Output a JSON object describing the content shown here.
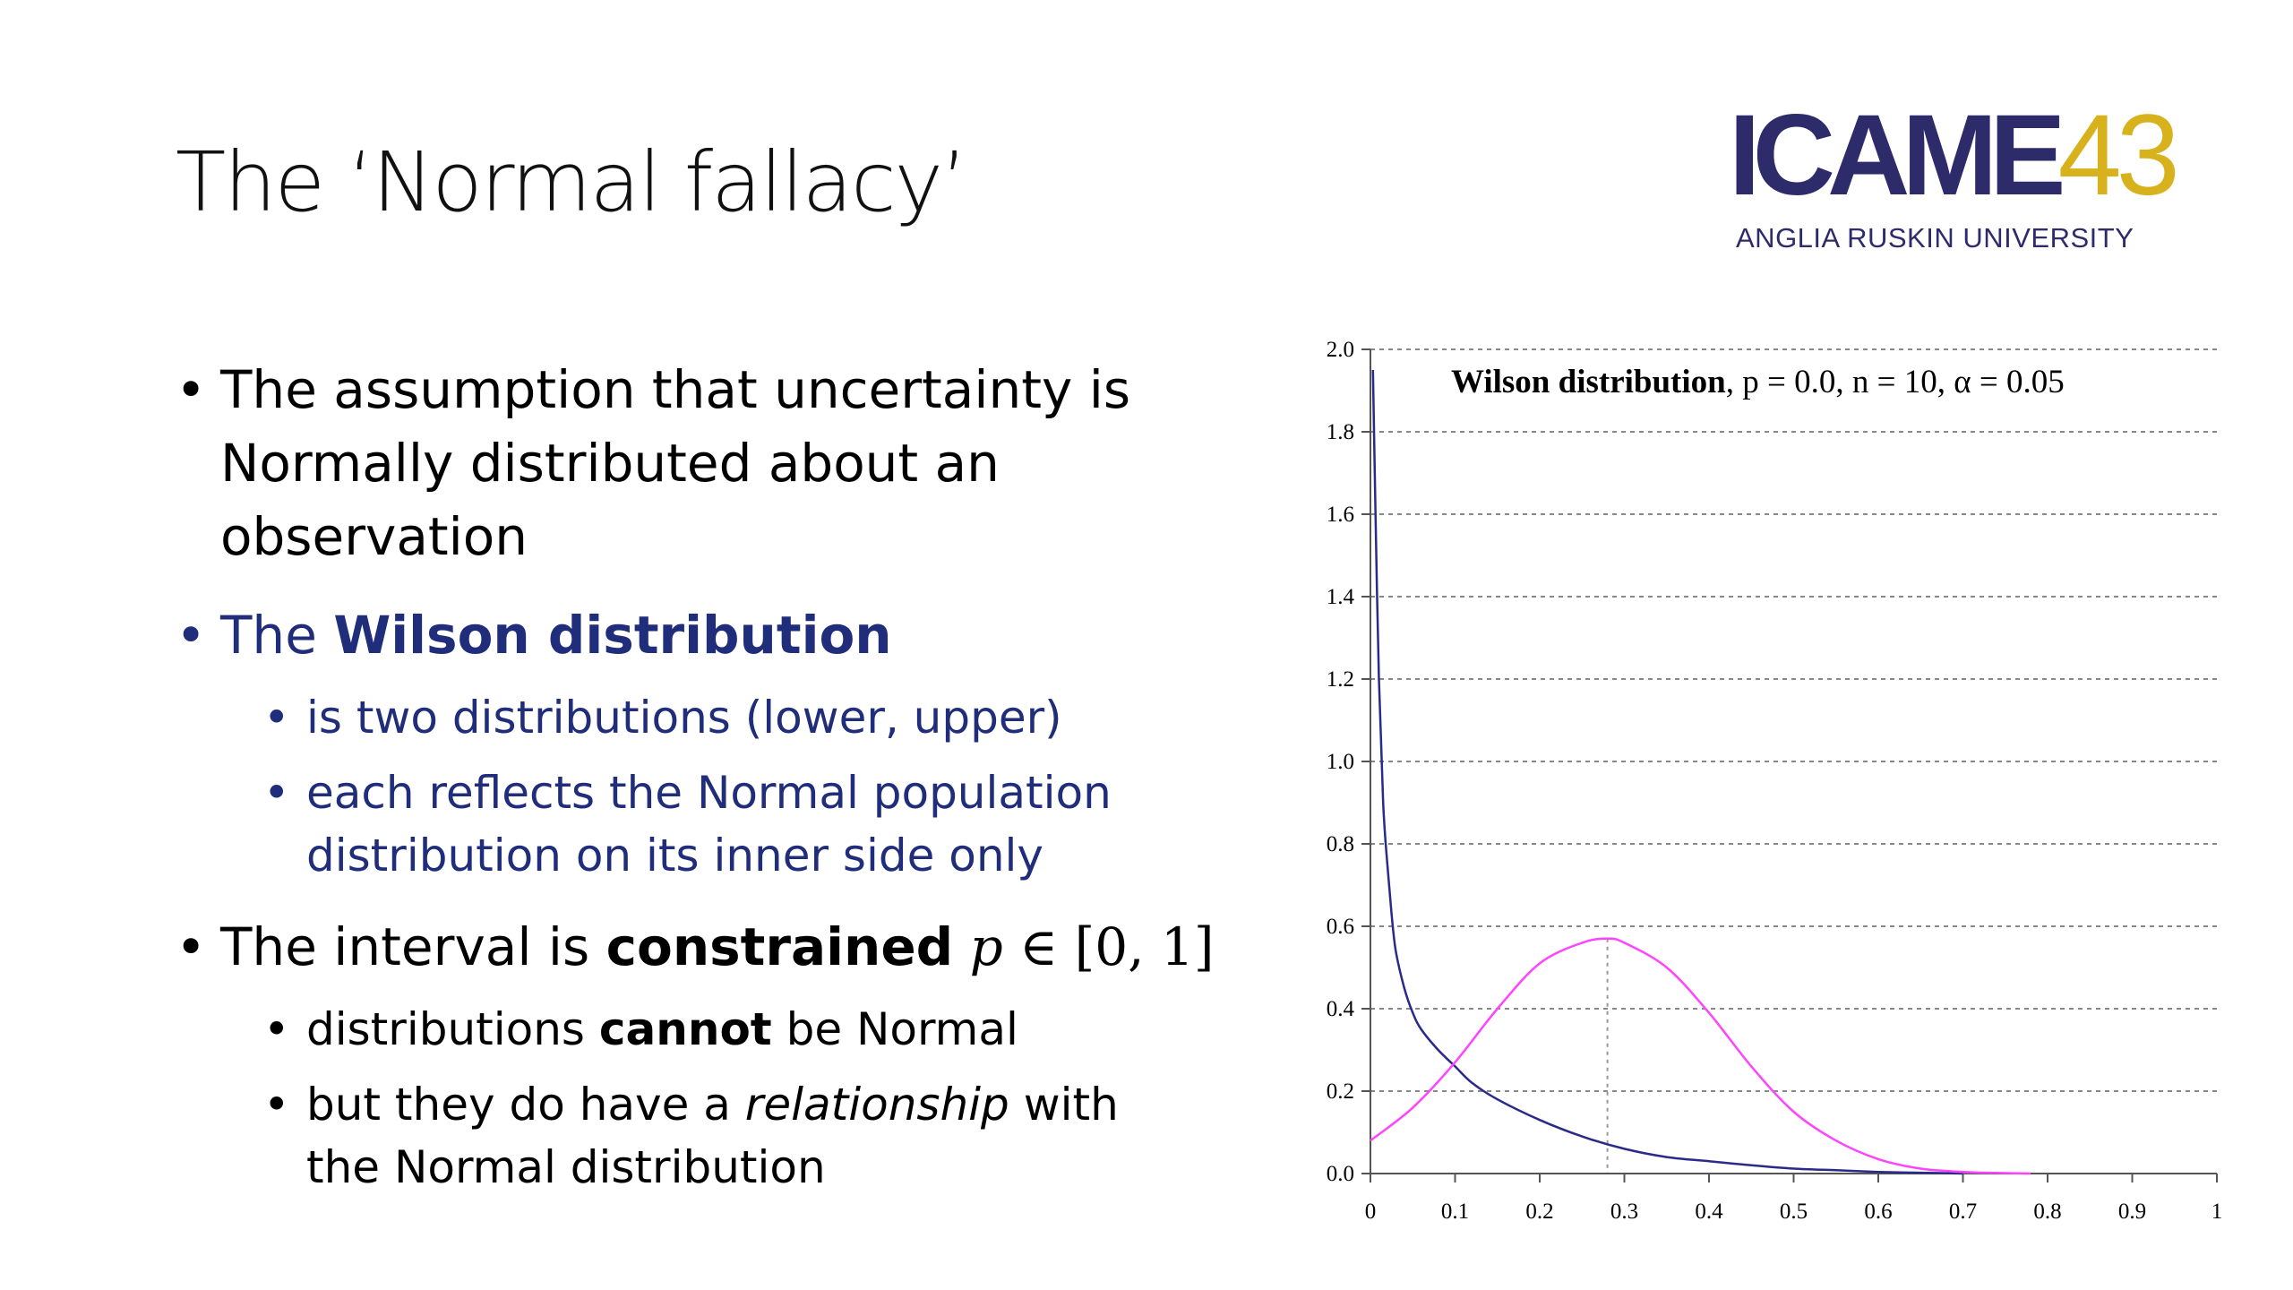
{
  "slide": {
    "title": "The ‘Normal fallacy’"
  },
  "logo": {
    "word": "ICAME",
    "number": "43",
    "subtitle": "ANGLIA RUSKIN UNIVERSITY"
  },
  "bullets": {
    "b1": {
      "line1": "The assumption that uncertainty is",
      "line2": "Normally distributed about an",
      "line3": "observation"
    },
    "b2": {
      "prefix": "The ",
      "bold": "Wilson distribution",
      "sub1": "is two distributions (lower, upper)",
      "sub2_line1": "each reflects the Normal population",
      "sub2_line2": "distribution on its inner side only"
    },
    "b3": {
      "prefix": "The interval is ",
      "bold": "constrained",
      "math_var": "p",
      "math_rest": " ∈ [0, 1]",
      "sub1_a": "distributions ",
      "sub1_bold": "cannot",
      "sub1_b": " be Normal",
      "sub2_a": "but they do have a ",
      "sub2_italic": "relationship",
      "sub2_b": " with",
      "sub2_line2": "the Normal distribution"
    }
  },
  "chart_data": {
    "type": "line",
    "annotation": {
      "bold": "Wilson distribution",
      "p_part": ", p = 0.0, ",
      "n_part": "n = 10, ",
      "alpha_part": "α = 0.05"
    },
    "xlim": [
      0,
      1
    ],
    "ylim": [
      0,
      2.0
    ],
    "x_ticks": [
      "0",
      "0.1",
      "0.2",
      "0.3",
      "0.4",
      "0.5",
      "0.6",
      "0.7",
      "0.8",
      "0.9",
      "1"
    ],
    "y_ticks": [
      "0.0",
      "0.2",
      "0.4",
      "0.6",
      "0.8",
      "1.0",
      "1.2",
      "1.4",
      "1.6",
      "1.8",
      "2.0"
    ],
    "grid": "horizontal-dashed",
    "series": [
      {
        "color": "#2a2a8a",
        "x": [
          0.003,
          0.006,
          0.01,
          0.015,
          0.02,
          0.025,
          0.03,
          0.04,
          0.05,
          0.06,
          0.08,
          0.1,
          0.12,
          0.15,
          0.2,
          0.25,
          0.3,
          0.35,
          0.4,
          0.45,
          0.5,
          0.55,
          0.6,
          0.65,
          0.7
        ],
        "y": [
          1.95,
          1.6,
          1.2,
          0.9,
          0.75,
          0.63,
          0.54,
          0.45,
          0.39,
          0.35,
          0.3,
          0.26,
          0.22,
          0.18,
          0.13,
          0.09,
          0.06,
          0.04,
          0.03,
          0.02,
          0.012,
          0.008,
          0.004,
          0.002,
          0.0
        ]
      },
      {
        "color": "#ff44ff",
        "x": [
          0.0,
          0.05,
          0.1,
          0.15,
          0.2,
          0.25,
          0.28,
          0.3,
          0.35,
          0.4,
          0.45,
          0.5,
          0.55,
          0.6,
          0.65,
          0.7,
          0.75,
          0.78
        ],
        "y": [
          0.08,
          0.16,
          0.27,
          0.4,
          0.51,
          0.56,
          0.57,
          0.56,
          0.5,
          0.39,
          0.26,
          0.15,
          0.08,
          0.035,
          0.012,
          0.004,
          0.001,
          0.0
        ]
      }
    ],
    "marker_line": {
      "x": 0.28,
      "y": 0.57
    }
  }
}
